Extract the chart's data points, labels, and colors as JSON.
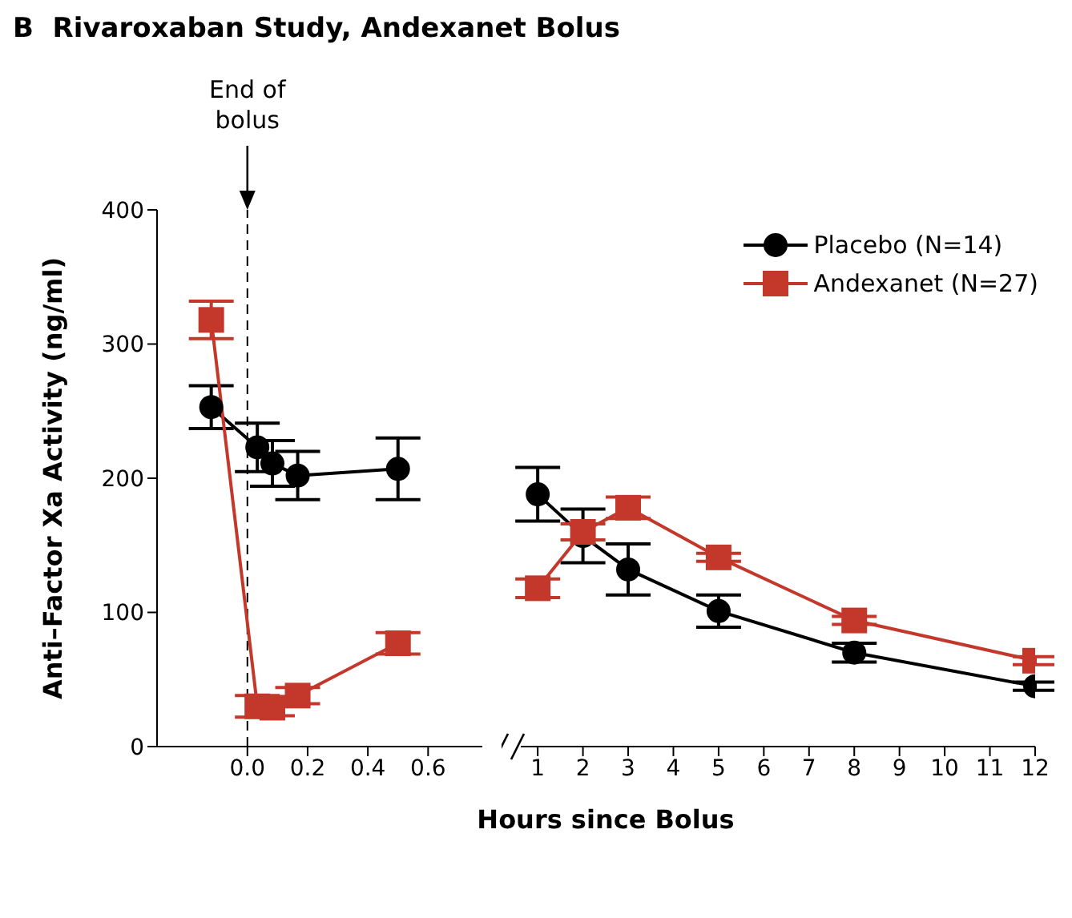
{
  "chart_data": [
    {
      "type": "line",
      "title": "B  Rivaroxaban Study, Andexanet Bolus",
      "ylabel": "Anti–Factor Xa Activity (ng/ml)",
      "xlim": [
        -0.3,
        0.78
      ],
      "xticks": [
        {
          "value": 0,
          "label": "0.0"
        },
        {
          "value": 0.2,
          "label": "0.2"
        },
        {
          "value": 0.4,
          "label": "0.4"
        },
        {
          "value": 0.6,
          "label": "0.6"
        }
      ],
      "ylim": [
        0,
        400
      ],
      "yticks": [
        0,
        100,
        200,
        300,
        400
      ],
      "grid": false,
      "line_style": "solid",
      "ref_lines": [
        {
          "axis": "x",
          "value": 0,
          "label": "End of bolus",
          "line_style": "dashed",
          "color": "#000000"
        }
      ],
      "series": [
        {
          "color": "#000000",
          "marker": "circle",
          "x": [
            -0.12,
            0.033,
            0.083,
            0.167,
            0.5
          ],
          "values": [
            253,
            223,
            211,
            202,
            207
          ],
          "errors": [
            16,
            18,
            17,
            18,
            23
          ]
        },
        {
          "color": "#c4372b",
          "marker": "square",
          "x": [
            -0.12,
            0.033,
            0.083,
            0.167,
            0.5
          ],
          "values": [
            318,
            30,
            29,
            38,
            77
          ],
          "errors": [
            14,
            8,
            6,
            6,
            8
          ]
        }
      ]
    },
    {
      "type": "line",
      "xlabel": "Hours since Bolus",
      "xlim": [
        0.2,
        12
      ],
      "xticks": [
        1,
        2,
        3,
        4,
        5,
        6,
        7,
        8,
        9,
        10,
        11,
        12
      ],
      "ylim": [
        0,
        400
      ],
      "tick_labels": "x",
      "grid": false,
      "legend": "top right",
      "line_style": "solid",
      "series": [
        {
          "name": "Placebo (N=14)",
          "color": "#000000",
          "marker": "circle",
          "x": [
            1,
            2,
            3,
            5,
            8,
            12
          ],
          "values": [
            188,
            157,
            132,
            101,
            70,
            45
          ],
          "errors": [
            20,
            20,
            19,
            12,
            7,
            3
          ]
        },
        {
          "name": "Andexanet (N=27)",
          "color": "#c4372b",
          "marker": "square",
          "x": [
            1,
            2,
            3,
            5,
            8,
            12
          ],
          "values": [
            118,
            160,
            178,
            141,
            94,
            64
          ],
          "errors": [
            7,
            6,
            8,
            3,
            3,
            3
          ]
        }
      ]
    }
  ]
}
